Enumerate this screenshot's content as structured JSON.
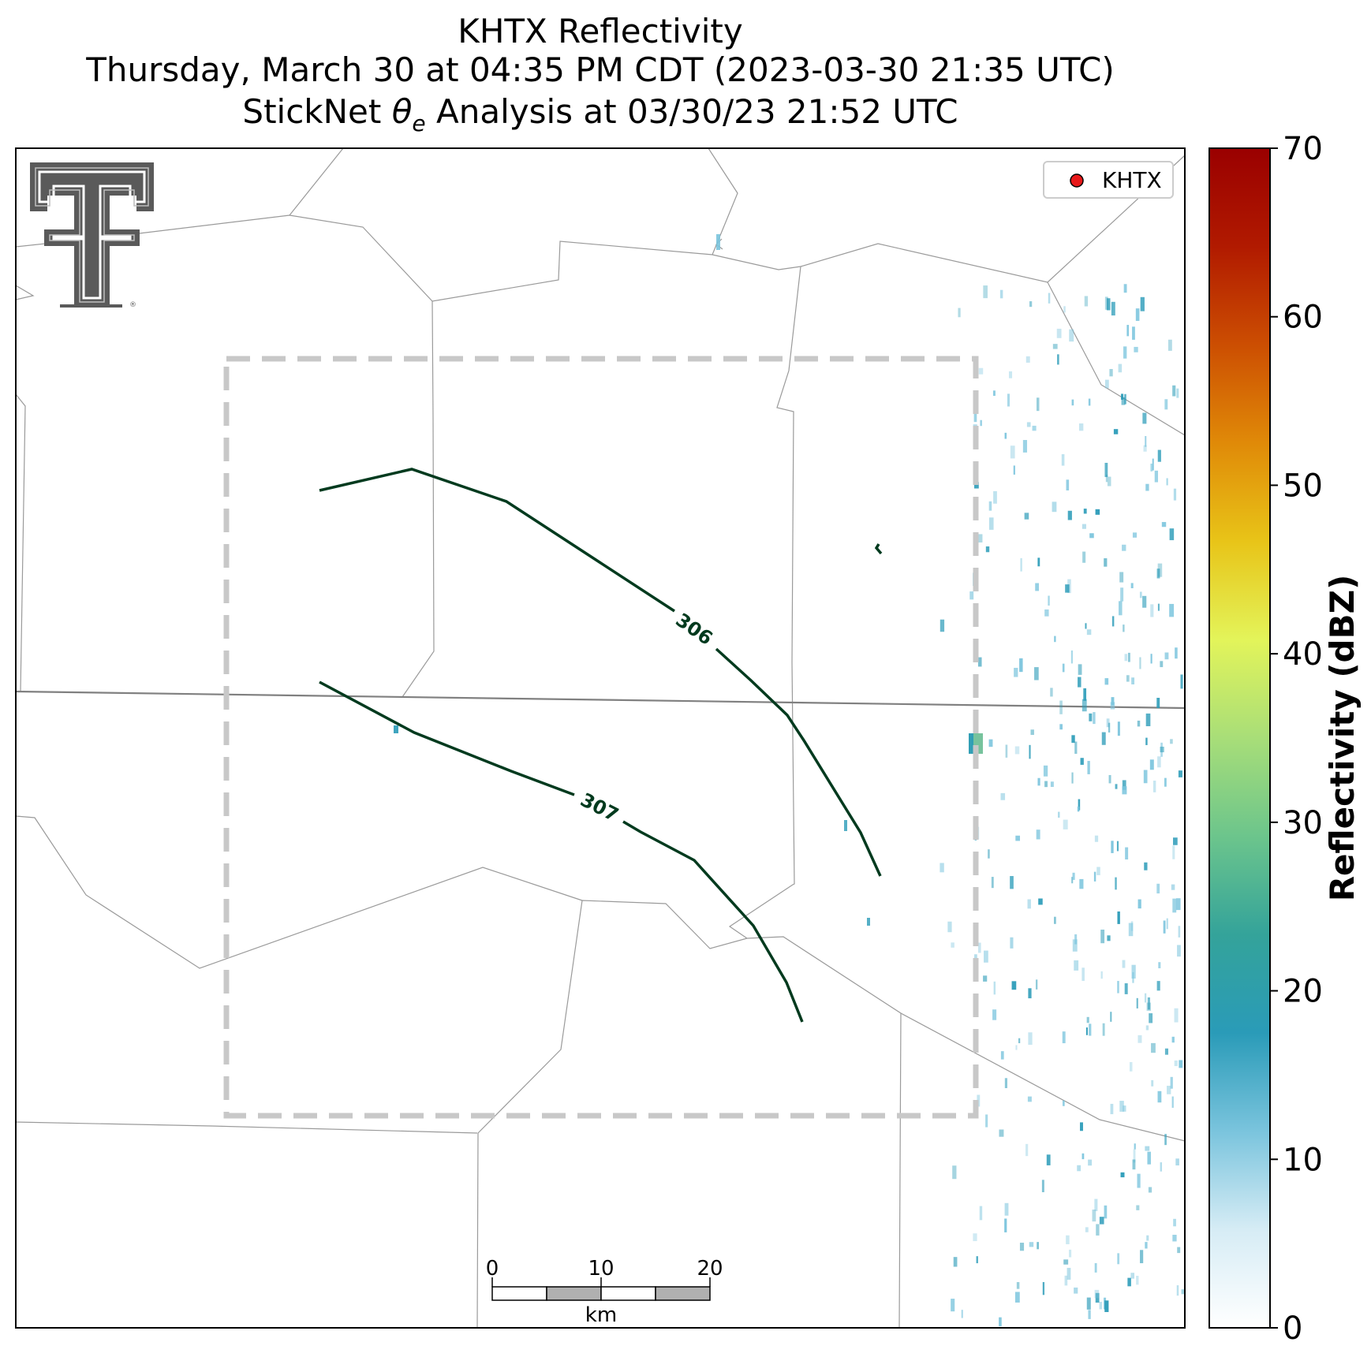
{
  "title": {
    "line1": "KHTX Reflectivity",
    "line2": "Thursday, March 30 at 04:35 PM CDT (2023-03-30 21:35 UTC)",
    "line3_prefix": "StickNet ",
    "line3_symbol": "θ",
    "line3_subscript": "e",
    "line3_suffix": " Analysis at 03/30/23 21:52 UTC"
  },
  "legend": {
    "label": "KHTX",
    "marker_color": "#e8191a"
  },
  "colorbar": {
    "label": "Reflectivity (dBZ)",
    "ticks": [
      "0",
      "10",
      "20",
      "30",
      "40",
      "50",
      "60",
      "70"
    ],
    "range": [
      0,
      70
    ],
    "colors": [
      "#ffffff",
      "#d6ecf5",
      "#7ac4dd",
      "#2a9bb8",
      "#34a39a",
      "#6cc58c",
      "#a8de78",
      "#e3f45a",
      "#e8c418",
      "#e08a08",
      "#cc4e02",
      "#b11a00",
      "#9a0000"
    ]
  },
  "contours": {
    "color": "#003a1e",
    "labels": [
      "306",
      "307"
    ]
  },
  "scale_bar": {
    "ticks": [
      "0",
      "10",
      "20"
    ],
    "unit": "km"
  },
  "colors": {
    "county_lines": "#9a9a9a",
    "state_line": "#808080",
    "analysis_box": "#c8c8c8",
    "reflectivity_light": "#7ac4dd",
    "reflectivity_mid": "#2a9bb8",
    "reflectivity_high": "#5fb98c"
  }
}
